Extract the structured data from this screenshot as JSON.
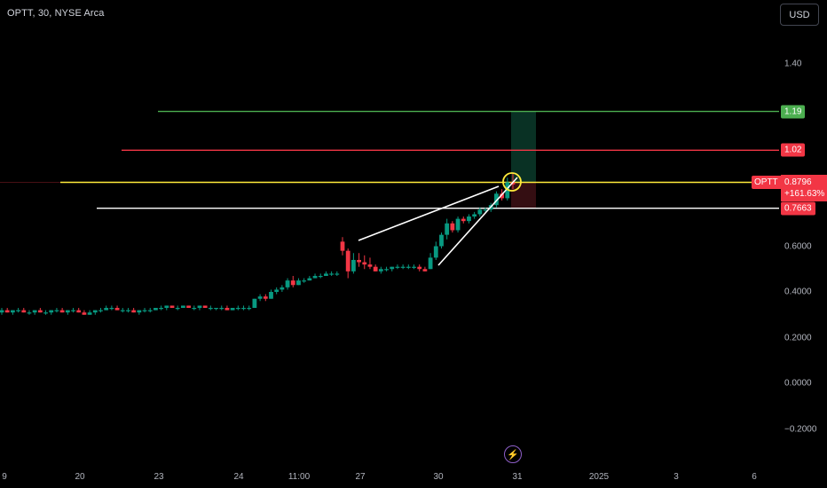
{
  "header": {
    "symbol_title": "OPTT, 30, NYSE Arca",
    "currency": "USD"
  },
  "chart_data": {
    "type": "candlestick",
    "y_axis_ticks": [
      "1.40",
      "0.6000",
      "0.4000",
      "0.2000",
      "0.0000",
      "−0.2000"
    ],
    "y_axis_tick_values": [
      1.4,
      0.6,
      0.4,
      0.2,
      0.0,
      -0.2
    ],
    "x_axis_ticks": [
      "9",
      "20",
      "23",
      "24",
      "11:00",
      "27",
      "30",
      "31",
      "2025",
      "3",
      "6"
    ],
    "price_lines": [
      {
        "label": "1.19",
        "value": 1.19,
        "color": "#4caf50"
      },
      {
        "label": "1.02",
        "value": 1.02,
        "color": "#f23645"
      },
      {
        "label": "0.8796",
        "value": 0.8796,
        "color": "#ffeb3b"
      },
      {
        "label": "0.7663",
        "value": 0.7663,
        "color": "#ffffff"
      }
    ],
    "last_price": {
      "symbol": "OPTT",
      "price": "0.8796",
      "change": "+161.63%"
    },
    "candles": [
      [
        0.31,
        0.33,
        0.3,
        0.32
      ],
      [
        0.32,
        0.33,
        0.31,
        0.31
      ],
      [
        0.31,
        0.32,
        0.3,
        0.32
      ],
      [
        0.32,
        0.33,
        0.31,
        0.32
      ],
      [
        0.32,
        0.33,
        0.31,
        0.31
      ],
      [
        0.31,
        0.32,
        0.3,
        0.31
      ],
      [
        0.31,
        0.32,
        0.3,
        0.32
      ],
      [
        0.32,
        0.33,
        0.31,
        0.31
      ],
      [
        0.31,
        0.32,
        0.3,
        0.31
      ],
      [
        0.31,
        0.32,
        0.3,
        0.32
      ],
      [
        0.32,
        0.33,
        0.31,
        0.32
      ],
      [
        0.32,
        0.33,
        0.31,
        0.31
      ],
      [
        0.31,
        0.32,
        0.3,
        0.32
      ],
      [
        0.32,
        0.33,
        0.31,
        0.32
      ],
      [
        0.32,
        0.33,
        0.31,
        0.31
      ],
      [
        0.31,
        0.32,
        0.3,
        0.3
      ],
      [
        0.3,
        0.32,
        0.3,
        0.31
      ],
      [
        0.31,
        0.32,
        0.3,
        0.32
      ],
      [
        0.32,
        0.33,
        0.31,
        0.32
      ],
      [
        0.32,
        0.34,
        0.32,
        0.33
      ],
      [
        0.33,
        0.34,
        0.32,
        0.33
      ],
      [
        0.33,
        0.34,
        0.32,
        0.32
      ],
      [
        0.32,
        0.33,
        0.31,
        0.32
      ],
      [
        0.32,
        0.33,
        0.31,
        0.32
      ],
      [
        0.32,
        0.33,
        0.31,
        0.31
      ],
      [
        0.31,
        0.32,
        0.3,
        0.32
      ],
      [
        0.32,
        0.33,
        0.31,
        0.32
      ],
      [
        0.32,
        0.33,
        0.31,
        0.32
      ],
      [
        0.32,
        0.33,
        0.32,
        0.33
      ],
      [
        0.33,
        0.34,
        0.32,
        0.33
      ],
      [
        0.33,
        0.34,
        0.32,
        0.34
      ],
      [
        0.34,
        0.34,
        0.33,
        0.33
      ],
      [
        0.33,
        0.34,
        0.32,
        0.33
      ],
      [
        0.33,
        0.34,
        0.33,
        0.34
      ],
      [
        0.34,
        0.34,
        0.33,
        0.33
      ],
      [
        0.33,
        0.34,
        0.32,
        0.33
      ],
      [
        0.33,
        0.34,
        0.32,
        0.34
      ],
      [
        0.34,
        0.34,
        0.33,
        0.33
      ],
      [
        0.33,
        0.34,
        0.32,
        0.33
      ],
      [
        0.33,
        0.33,
        0.32,
        0.33
      ],
      [
        0.33,
        0.34,
        0.32,
        0.33
      ],
      [
        0.33,
        0.34,
        0.32,
        0.32
      ],
      [
        0.32,
        0.33,
        0.32,
        0.33
      ],
      [
        0.33,
        0.34,
        0.32,
        0.33
      ],
      [
        0.33,
        0.34,
        0.32,
        0.33
      ],
      [
        0.33,
        0.34,
        0.32,
        0.33
      ],
      [
        0.33,
        0.37,
        0.33,
        0.37
      ],
      [
        0.37,
        0.39,
        0.36,
        0.38
      ],
      [
        0.38,
        0.39,
        0.36,
        0.37
      ],
      [
        0.37,
        0.41,
        0.37,
        0.4
      ],
      [
        0.4,
        0.42,
        0.39,
        0.41
      ],
      [
        0.41,
        0.43,
        0.4,
        0.42
      ],
      [
        0.42,
        0.46,
        0.41,
        0.45
      ],
      [
        0.45,
        0.47,
        0.42,
        0.43
      ],
      [
        0.43,
        0.46,
        0.43,
        0.45
      ],
      [
        0.45,
        0.46,
        0.44,
        0.45
      ],
      [
        0.45,
        0.47,
        0.45,
        0.46
      ],
      [
        0.46,
        0.48,
        0.46,
        0.47
      ],
      [
        0.47,
        0.48,
        0.46,
        0.47
      ],
      [
        0.47,
        0.49,
        0.47,
        0.48
      ],
      [
        0.48,
        0.49,
        0.47,
        0.48
      ],
      [
        0.48,
        0.49,
        0.47,
        0.48
      ],
      [
        0.62,
        0.64,
        0.56,
        0.58
      ],
      [
        0.58,
        0.59,
        0.46,
        0.49
      ],
      [
        0.49,
        0.57,
        0.48,
        0.54
      ],
      [
        0.54,
        0.57,
        0.51,
        0.53
      ],
      [
        0.53,
        0.56,
        0.5,
        0.52
      ],
      [
        0.52,
        0.55,
        0.5,
        0.51
      ],
      [
        0.51,
        0.52,
        0.49,
        0.49
      ],
      [
        0.49,
        0.51,
        0.48,
        0.5
      ],
      [
        0.5,
        0.51,
        0.49,
        0.5
      ],
      [
        0.5,
        0.51,
        0.49,
        0.51
      ],
      [
        0.51,
        0.52,
        0.5,
        0.51
      ],
      [
        0.51,
        0.52,
        0.5,
        0.51
      ],
      [
        0.51,
        0.52,
        0.5,
        0.51
      ],
      [
        0.51,
        0.52,
        0.5,
        0.51
      ],
      [
        0.51,
        0.52,
        0.49,
        0.5
      ],
      [
        0.5,
        0.51,
        0.49,
        0.49
      ],
      [
        0.5,
        0.57,
        0.5,
        0.55
      ],
      [
        0.55,
        0.62,
        0.54,
        0.6
      ],
      [
        0.6,
        0.66,
        0.59,
        0.65
      ],
      [
        0.65,
        0.72,
        0.63,
        0.7
      ],
      [
        0.7,
        0.71,
        0.66,
        0.67
      ],
      [
        0.67,
        0.73,
        0.66,
        0.72
      ],
      [
        0.72,
        0.73,
        0.7,
        0.71
      ],
      [
        0.71,
        0.74,
        0.7,
        0.73
      ],
      [
        0.73,
        0.75,
        0.72,
        0.74
      ],
      [
        0.74,
        0.77,
        0.73,
        0.76
      ],
      [
        0.76,
        0.77,
        0.75,
        0.76
      ],
      [
        0.76,
        0.79,
        0.75,
        0.78
      ],
      [
        0.78,
        0.84,
        0.77,
        0.83
      ],
      [
        0.83,
        0.85,
        0.8,
        0.81
      ],
      [
        0.81,
        0.9,
        0.8,
        0.88
      ],
      [
        0.88,
        0.92,
        0.85,
        0.87
      ]
    ]
  }
}
